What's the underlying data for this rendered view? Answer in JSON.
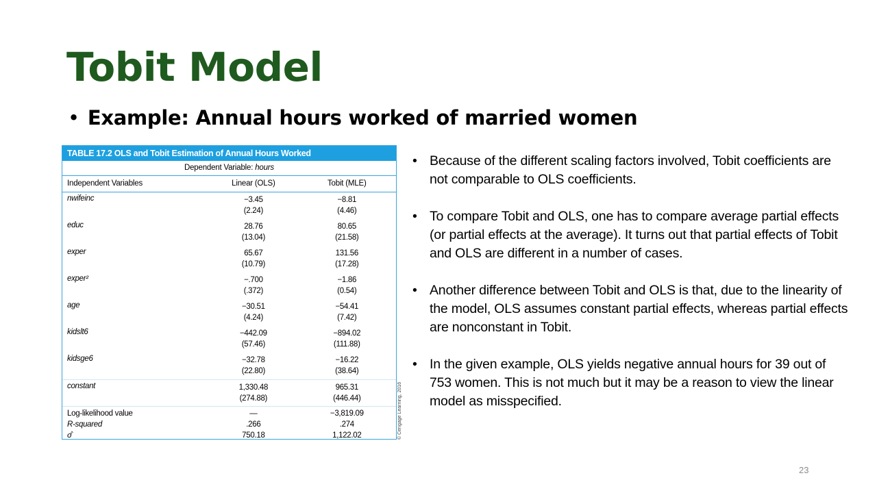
{
  "slide": {
    "title": "Tobit Model",
    "subtitle_bullet": "•",
    "subtitle": "Example: Annual hours worked of married women",
    "page_number": "23"
  },
  "table": {
    "caption": "TABLE 17.2  OLS and Tobit Estimation of Annual Hours Worked",
    "dependent_variable_label": "Dependent Variable: ",
    "dependent_variable": "hours",
    "columns": [
      "Independent Variables",
      "Linear (OLS)",
      "Tobit (MLE)"
    ],
    "rows": [
      {
        "name": "nwifeinc",
        "ols": "−3.45",
        "ols_se": "(2.24)",
        "tobit": "−8.81",
        "tobit_se": "(4.46)"
      },
      {
        "name": "educ",
        "ols": "28.76",
        "ols_se": "(13.04)",
        "tobit": "80.65",
        "tobit_se": "(21.58)"
      },
      {
        "name": "exper",
        "ols": "65.67",
        "ols_se": "(10.79)",
        "tobit": "131.56",
        "tobit_se": "(17.28)"
      },
      {
        "name": "exper²",
        "ols": "−.700",
        "ols_se": "(.372)",
        "tobit": "−1.86",
        "tobit_se": "(0.54)"
      },
      {
        "name": "age",
        "ols": "−30.51",
        "ols_se": "(4.24)",
        "tobit": "−54.41",
        "tobit_se": "(7.42)"
      },
      {
        "name": "kidslt6",
        "ols": "−442.09",
        "ols_se": "(57.46)",
        "tobit": "−894.02",
        "tobit_se": "(111.88)"
      },
      {
        "name": "kidsge6",
        "ols": "−32.78",
        "ols_se": "(22.80)",
        "tobit": "−16.22",
        "tobit_se": "(38.64)"
      },
      {
        "name": "constant",
        "ols": "1,330.48",
        "ols_se": "(274.88)",
        "tobit": "965.31",
        "tobit_se": "(446.44)"
      }
    ],
    "stats": [
      {
        "name": "Log-likelihood value",
        "ols": "—",
        "tobit": "−3,819.09"
      },
      {
        "name": "R-squared",
        "ols": ".266",
        "tobit": ".274"
      },
      {
        "name": "σ̂",
        "ols": "750.18",
        "tobit": "1,122.02"
      }
    ],
    "copyright": "© Cengage Learning, 2016"
  },
  "bullets": [
    "Because of the different scaling factors involved, Tobit coefficients are not comparable to OLS coefficients.",
    "To compare Tobit and OLS, one has to compare average partial effects (or partial effects at the average). It turns out that partial effects of Tobit and OLS are different in a number of cases.",
    "Another difference between Tobit and OLS is that, due to the linearity of the model, OLS assumes constant partial effects, whereas partial effects are nonconstant in Tobit.",
    "In the given example, OLS yields negative annual hours for 39 out of 753 women. This is not much but it may be a reason to view the linear model as misspecified."
  ],
  "bullet_symbol": "•",
  "colors": {
    "title": "#1f5a1e",
    "table_header": "#1ea0e0",
    "table_border": "#3aa4dd"
  }
}
